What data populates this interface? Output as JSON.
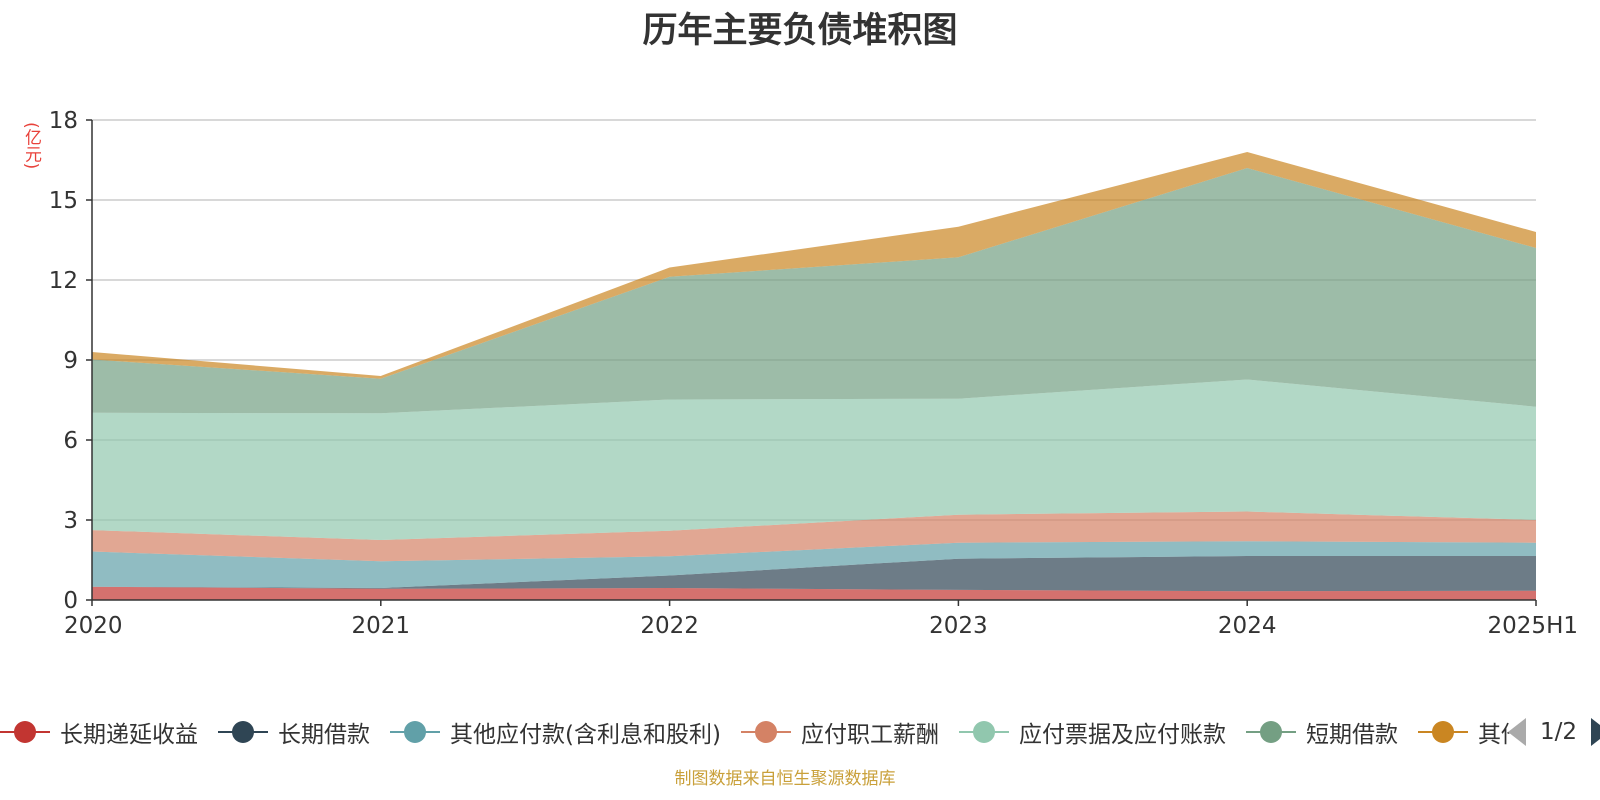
{
  "title": "历年主要负债堆积图",
  "unit": "(亿元)",
  "source": "制图数据来自恒生聚源数据库",
  "legend_pager": "1/2",
  "chart_data": {
    "type": "area",
    "stacked": true,
    "title": "历年主要负债堆积图",
    "ylabel": "(亿元)",
    "categories": [
      "2020",
      "2021",
      "2022",
      "2023",
      "2024",
      "2025H1"
    ],
    "ylim": [
      0,
      18
    ],
    "yticks": [
      0,
      3,
      6,
      9,
      12,
      15,
      18
    ],
    "grid": true,
    "legend_position": "bottom",
    "series": [
      {
        "name": "长期递延收益",
        "color": "#c23531",
        "values": [
          0.5,
          0.42,
          0.45,
          0.38,
          0.33,
          0.35
        ]
      },
      {
        "name": "长期借款",
        "color": "#2f4554",
        "values": [
          0.0,
          0.03,
          0.47,
          1.17,
          1.32,
          1.3
        ]
      },
      {
        "name": "其他应付款(含利息和股利)",
        "color": "#61a0a8",
        "values": [
          1.32,
          1.0,
          0.72,
          0.6,
          0.55,
          0.5
        ]
      },
      {
        "name": "应付职工薪酬",
        "color": "#d48265",
        "values": [
          0.8,
          0.8,
          0.96,
          1.05,
          1.12,
          0.85
        ]
      },
      {
        "name": "应付票据及应付账款",
        "color": "#91c7ae",
        "values": [
          4.4,
          4.75,
          4.92,
          4.35,
          4.95,
          4.25
        ]
      },
      {
        "name": "短期借款",
        "color": "#749f83",
        "values": [
          2.0,
          1.3,
          4.6,
          5.3,
          7.93,
          5.95
        ]
      },
      {
        "name": "其他",
        "color": "#ca8622",
        "values": [
          0.28,
          0.1,
          0.35,
          1.15,
          0.6,
          0.6
        ]
      }
    ]
  }
}
